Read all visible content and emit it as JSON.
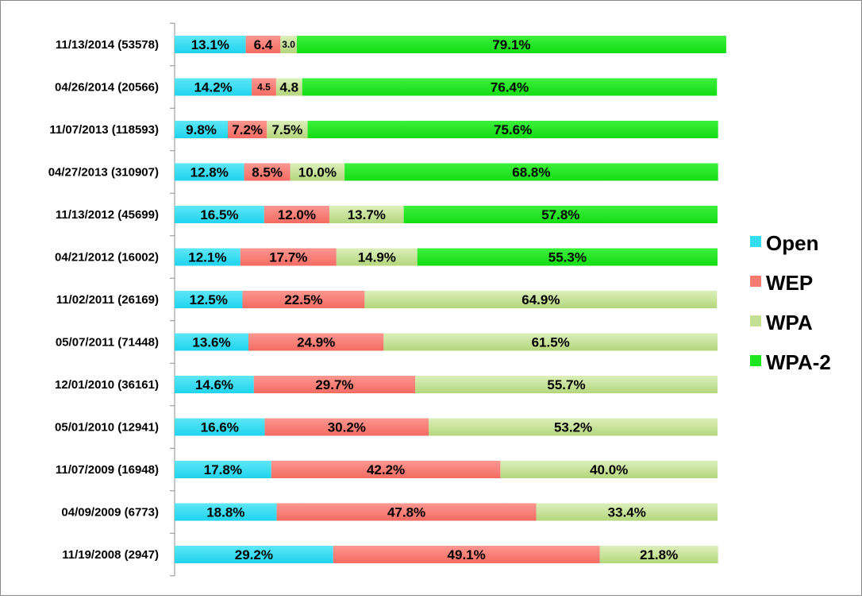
{
  "chart_data": {
    "type": "bar",
    "orientation": "horizontal",
    "stacked": "percent",
    "categories": [
      "11/13/2014 (53578)",
      "04/26/2014 (20566)",
      "11/07/2013 (118593)",
      "04/27/2013 (310907)",
      "11/13/2012 (45699)",
      "04/21/2012 (16002)",
      "11/02/2011 (26169)",
      "05/07/2011 (71448)",
      "12/01/2010 (36161)",
      "05/01/2010 (12941)",
      "11/07/2009 (16948)",
      "04/09/2009 (6773)",
      "11/19/2008 (2947)"
    ],
    "series": [
      {
        "name": "Open",
        "color": "#33ddf2",
        "values": [
          13.1,
          14.2,
          9.8,
          12.8,
          16.5,
          12.1,
          12.5,
          13.6,
          14.6,
          16.6,
          17.8,
          18.8,
          29.2
        ],
        "labels": [
          "13.1%",
          "14.2%",
          "9.8%",
          "12.8%",
          "16.5%",
          "12.1%",
          "12.5%",
          "13.6%",
          "14.6%",
          "16.6%",
          "17.8%",
          "18.8%",
          "29.2%"
        ]
      },
      {
        "name": "WEP",
        "color": "#f87b73",
        "values": [
          6.4,
          4.5,
          7.2,
          8.5,
          12.0,
          17.7,
          22.5,
          24.9,
          29.7,
          30.2,
          42.2,
          47.8,
          49.1
        ],
        "labels": [
          "6.4",
          "4.5",
          "7.2%",
          "8.5%",
          "12.0%",
          "17.7%",
          "22.5%",
          "24.9%",
          "29.7%",
          "30.2%",
          "42.2%",
          "47.8%",
          "49.1%"
        ]
      },
      {
        "name": "WPA",
        "color": "#c5e094",
        "values": [
          3.0,
          4.8,
          7.5,
          10.0,
          13.7,
          14.9,
          64.9,
          61.5,
          55.7,
          53.2,
          40.0,
          33.4,
          21.8
        ],
        "labels": [
          "3.0",
          "4.8",
          "7.5%",
          "10.0%",
          "13.7%",
          "14.9%",
          "64.9%",
          "61.5%",
          "55.7%",
          "53.2%",
          "40.0%",
          "33.4%",
          "21.8%"
        ]
      },
      {
        "name": "WPA-2",
        "color": "#1ee61e",
        "values": [
          79.1,
          76.4,
          75.6,
          68.8,
          57.8,
          55.3,
          0,
          0,
          0,
          0,
          0,
          0,
          0
        ],
        "labels": [
          "79.1%",
          "76.4%",
          "75.6%",
          "68.8%",
          "57.8%",
          "55.3%",
          "",
          "",
          "",
          "",
          "",
          "",
          ""
        ]
      }
    ],
    "title": "",
    "xlabel": "",
    "ylabel": "",
    "legend": "right",
    "grid": false
  }
}
